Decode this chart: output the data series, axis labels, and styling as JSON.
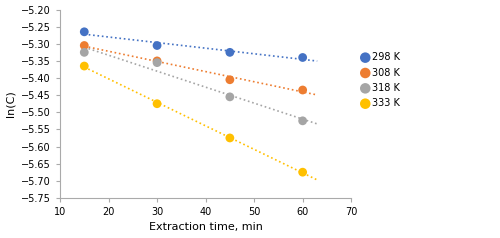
{
  "series": [
    {
      "label": "298 K",
      "color": "#4472C4",
      "x": [
        15,
        30,
        45,
        60
      ],
      "y": [
        -5.265,
        -5.305,
        -5.325,
        -5.34
      ]
    },
    {
      "label": "308 K",
      "color": "#ED7D31",
      "x": [
        15,
        30,
        45,
        60
      ],
      "y": [
        -5.305,
        -5.35,
        -5.405,
        -5.435
      ]
    },
    {
      "label": "318 K",
      "color": "#A5A5A5",
      "x": [
        15,
        30,
        45,
        60
      ],
      "y": [
        -5.325,
        -5.355,
        -5.455,
        -5.525
      ]
    },
    {
      "label": "333 K",
      "color": "#FFC000",
      "x": [
        15,
        30,
        45,
        60
      ],
      "y": [
        -5.365,
        -5.475,
        -5.575,
        -5.675
      ]
    }
  ],
  "xlabel": "Extraction time, min",
  "ylabel": "ln(C)",
  "xlim": [
    10,
    70
  ],
  "ylim": [
    -5.75,
    -5.2
  ],
  "xticks": [
    10,
    20,
    30,
    40,
    50,
    60,
    70
  ],
  "yticks": [
    -5.75,
    -5.7,
    -5.65,
    -5.6,
    -5.55,
    -5.5,
    -5.45,
    -5.4,
    -5.35,
    -5.3,
    -5.25,
    -5.2
  ],
  "figsize": [
    5.0,
    2.38
  ],
  "dpi": 100,
  "marker_size": 40,
  "line_width": 1.2,
  "tick_fontsize": 7,
  "label_fontsize": 8,
  "legend_fontsize": 7
}
